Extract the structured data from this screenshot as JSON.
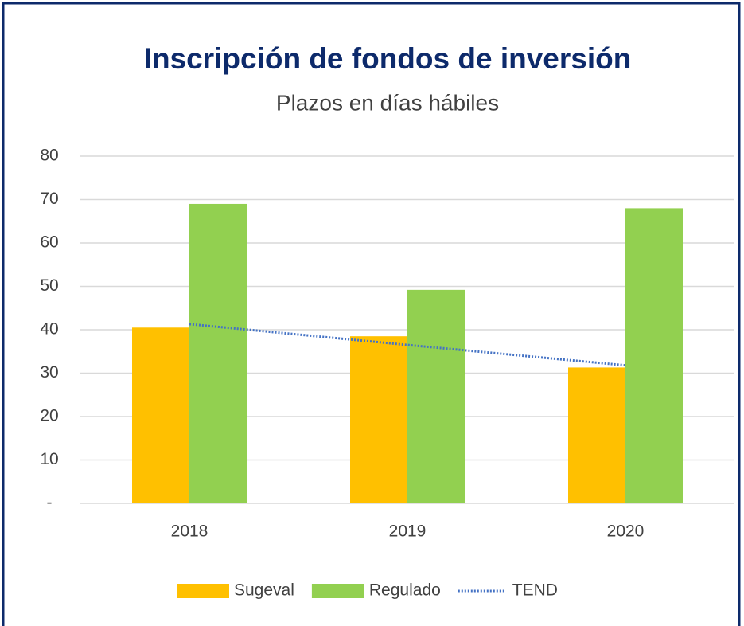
{
  "chart_data": {
    "type": "bar",
    "title": "Inscripción de fondos de inversión",
    "subtitle": "Plazos en días hábiles",
    "categories": [
      "2018",
      "2019",
      "2020"
    ],
    "series": [
      {
        "name": "Sugeval",
        "color": "#ffc000",
        "values": [
          40.5,
          38.5,
          31.3
        ]
      },
      {
        "name": "Regulado",
        "color": "#92d050",
        "values": [
          69,
          49.2,
          68
        ]
      },
      {
        "name": "TEND",
        "type": "line",
        "style": "dotted",
        "color": "#4472c4",
        "values": [
          41.3,
          36.5,
          31.8
        ]
      }
    ],
    "ylim": [
      0,
      80
    ],
    "yticks": [
      {
        "value": 0,
        "label": "-"
      },
      10,
      20,
      30,
      40,
      50,
      60,
      70,
      80
    ],
    "grid": true,
    "legend": "bottom"
  }
}
